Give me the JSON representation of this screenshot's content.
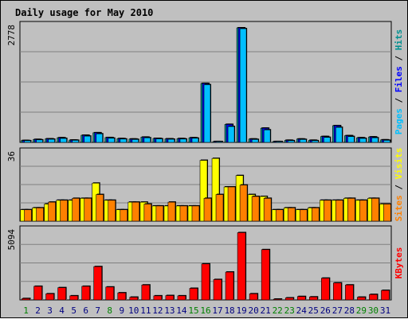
{
  "chart_data": {
    "type": "bar",
    "title": "Daily usage for May 2010",
    "categories": [
      "1",
      "2",
      "3",
      "4",
      "5",
      "6",
      "7",
      "8",
      "9",
      "10",
      "11",
      "12",
      "13",
      "14",
      "15",
      "16",
      "17",
      "18",
      "19",
      "20",
      "21",
      "22",
      "23",
      "24",
      "25",
      "26",
      "27",
      "28",
      "29",
      "30",
      "31"
    ],
    "weekend_days": [
      "1",
      "8",
      "15",
      "16",
      "22",
      "23",
      "29",
      "30"
    ],
    "panels": [
      {
        "id": "pages-files-hits",
        "ymax_label": "2778",
        "ymax": 2778,
        "side_labels": [
          "Pages",
          "Files",
          "Hits"
        ],
        "series": [
          {
            "name": "Hits",
            "color": "#009090",
            "values": [
              45,
              70,
              85,
              110,
              55,
              170,
              230,
              115,
              90,
              80,
              125,
              95,
              85,
              90,
              110,
              1410,
              20,
              430,
              2740,
              80,
              340,
              20,
              50,
              80,
              50,
              140,
              400,
              160,
              110,
              130,
              60
            ]
          },
          {
            "name": "Files",
            "color": "#0000ff",
            "values": [
              45,
              70,
              85,
              110,
              55,
              170,
              230,
              115,
              90,
              80,
              125,
              95,
              85,
              90,
              110,
              1410,
              20,
              430,
              2740,
              80,
              340,
              20,
              50,
              80,
              50,
              140,
              400,
              160,
              110,
              130,
              60
            ]
          },
          {
            "name": "Pages",
            "color": "#00bfff",
            "values": [
              40,
              60,
              75,
              95,
              50,
              150,
              205,
              100,
              80,
              70,
              110,
              85,
              75,
              80,
              100,
              1380,
              15,
              380,
              2720,
              70,
              300,
              15,
              40,
              70,
              40,
              120,
              360,
              140,
              95,
              110,
              50
            ]
          }
        ]
      },
      {
        "id": "sites-visits",
        "ymax_label": "36",
        "ymax": 36,
        "side_labels": [
          "Sites",
          "Visits"
        ],
        "series": [
          {
            "name": "Visits",
            "color": "#ffff00",
            "values": [
              6,
              7,
              9,
              11,
              11,
              12,
              20,
              11,
              6,
              10,
              10,
              8,
              8,
              8,
              8,
              32,
              33,
              18,
              24,
              14,
              13,
              6,
              7,
              6,
              7,
              11,
              11,
              12,
              11,
              12,
              9
            ]
          },
          {
            "name": "Sites",
            "color": "#ff8000",
            "values": [
              6,
              7,
              10,
              11,
              12,
              12,
              14,
              11,
              6,
              10,
              9,
              8,
              10,
              8,
              8,
              12,
              14,
              18,
              19,
              13,
              12,
              6,
              7,
              6,
              7,
              11,
              11,
              12,
              11,
              12,
              9
            ]
          }
        ]
      },
      {
        "id": "kbytes",
        "ymax_label": "5094",
        "ymax": 5094,
        "side_labels": [
          "KBytes"
        ],
        "series": [
          {
            "name": "KBytes",
            "color": "#ff0000",
            "values": [
              100,
              1000,
              450,
              900,
              300,
              1000,
              2450,
              950,
              520,
              200,
              1100,
              300,
              320,
              300,
              850,
              2650,
              1500,
              2050,
              4950,
              450,
              3700,
              50,
              150,
              250,
              220,
              1600,
              1250,
              1100,
              200,
              400,
              700
            ]
          }
        ]
      }
    ]
  },
  "colors": {
    "background": "#c0c0c0",
    "title": "#0000a0",
    "weekday_label": "#000080",
    "weekend_label": "#008000",
    "grid": "#808080",
    "bar_shadow": "#000000"
  }
}
